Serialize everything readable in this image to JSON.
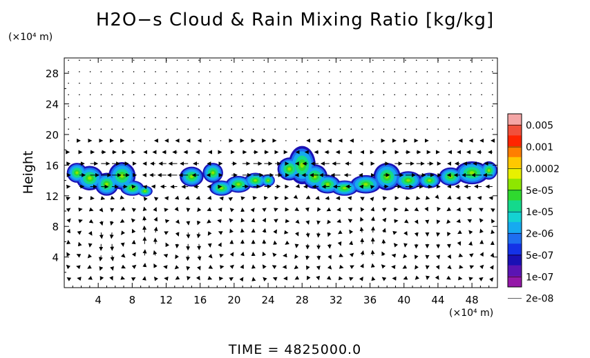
{
  "title": "H2O−s Cloud & Rain Mixing Ratio [kg/kg]",
  "time_label": "TIME  =  4825000.0",
  "chart_data": {
    "type": "heatmap",
    "title": "H2O−s Cloud & Rain Mixing Ratio [kg/kg]",
    "xlabel": "",
    "ylabel": "Height",
    "x_unit": "(×10⁴ m)",
    "y_unit": "(×10⁴ m)",
    "xlim": [
      0,
      51
    ],
    "ylim": [
      0,
      30
    ],
    "x_ticks": [
      4,
      8,
      12,
      16,
      20,
      24,
      28,
      32,
      36,
      40,
      44,
      48
    ],
    "y_ticks": [
      4,
      8,
      12,
      16,
      20,
      24,
      28
    ],
    "grid": false,
    "overlay": "wind vectors",
    "colorbar": {
      "labels": [
        "0.005",
        "0.001",
        "0.0002",
        "5e-05",
        "1e-05",
        "2e-06",
        "5e-07",
        "1e-07",
        "2e-08"
      ],
      "colors": [
        "#f4a6a6",
        "#f0503c",
        "#ff2400",
        "#ff7e00",
        "#ffc800",
        "#e8f000",
        "#8ee600",
        "#2fd92f",
        "#14d98c",
        "#14d2d2",
        "#16aaf0",
        "#1e6ef0",
        "#1432e6",
        "#1a10b4",
        "#5a14b4",
        "#9418a8"
      ]
    },
    "cloud_bands": [
      {
        "x_range": [
          0.5,
          10.5
        ],
        "y_range": [
          11.5,
          16.5
        ],
        "peak": "5e-05"
      },
      {
        "x_range": [
          13.5,
          24.5
        ],
        "y_range": [
          12,
          16.5
        ],
        "peak": "5e-05"
      },
      {
        "x_range": [
          25.5,
          51
        ],
        "y_range": [
          12,
          19
        ],
        "peak": "5e-05"
      }
    ]
  }
}
